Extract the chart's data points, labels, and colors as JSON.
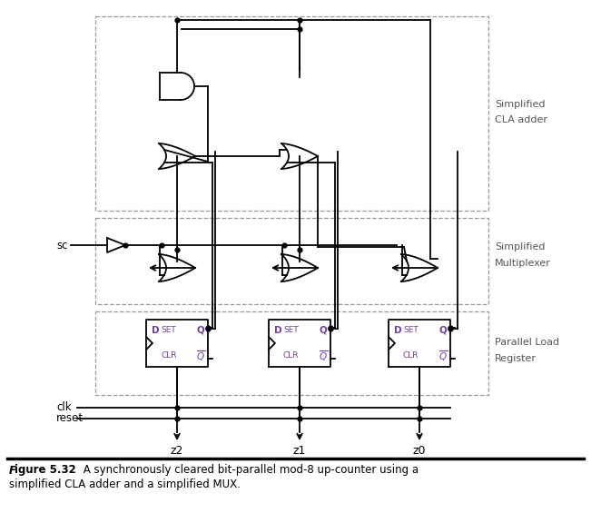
{
  "figsize": [
    6.51,
    5.65
  ],
  "dpi": 100,
  "bg": "#ffffff",
  "wc": "#000000",
  "gc": "#000000",
  "tc": "#7040a0",
  "rc": "#555555",
  "dash_color": "#999999",
  "caption": "A synchronously cleared bit-parallel mod-8 up-counter using a simplified CLA adder and a simplified MUX.",
  "caption_bold": "Figure 5.32",
  "right_labels": [
    "Simplified",
    "CLA adder",
    "Simplified",
    "Multiplexer",
    "Parallel Load",
    "Register"
  ],
  "bottom_labels": [
    "z2",
    "z1",
    "z0"
  ],
  "left_labels": [
    "sc",
    "clk",
    "reset"
  ]
}
